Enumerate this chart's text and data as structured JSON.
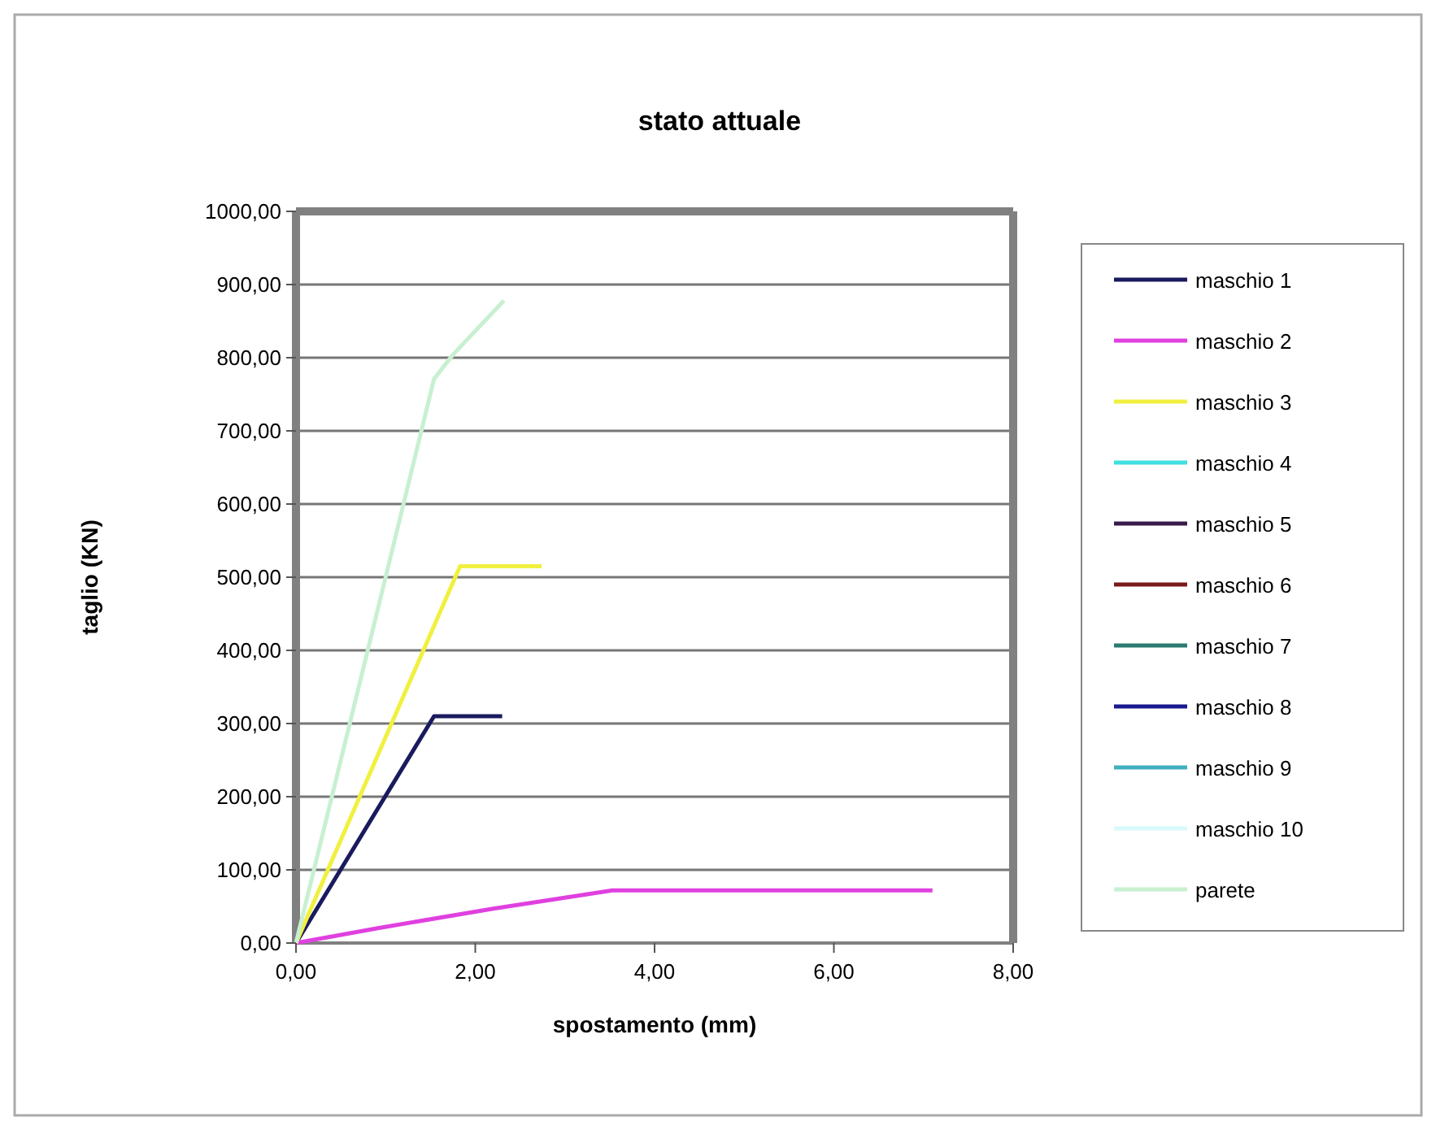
{
  "chart_data": {
    "type": "line",
    "title": "stato attuale",
    "xlabel": "spostamento (mm)",
    "ylabel": "taglio (KN)",
    "xlim": [
      0,
      8
    ],
    "xticks": [
      {
        "value": 0,
        "label": "0,00"
      },
      {
        "value": 2,
        "label": "2,00"
      },
      {
        "value": 4,
        "label": "4,00"
      },
      {
        "value": 6,
        "label": "6,00"
      },
      {
        "value": 8,
        "label": "8,00"
      }
    ],
    "ylim": [
      0,
      1000
    ],
    "yticks": [
      {
        "value": 0,
        "label": "0,00"
      },
      {
        "value": 100,
        "label": "100,00"
      },
      {
        "value": 200,
        "label": "200,00"
      },
      {
        "value": 300,
        "label": "300,00"
      },
      {
        "value": 400,
        "label": "400,00"
      },
      {
        "value": 500,
        "label": "500,00"
      },
      {
        "value": 600,
        "label": "600,00"
      },
      {
        "value": 700,
        "label": "700,00"
      },
      {
        "value": 800,
        "label": "800,00"
      },
      {
        "value": 900,
        "label": "900,00"
      },
      {
        "value": 1000,
        "label": "1000,00"
      }
    ],
    "grid": "y",
    "legend": "right",
    "marker": "none",
    "line_style": "solid",
    "series": [
      {
        "name": "maschio 1",
        "color": "#1a1a5e",
        "x": [
          0,
          1.54,
          2.3
        ],
        "values": [
          0,
          310,
          310
        ]
      },
      {
        "name": "maschio 2",
        "color": "#e040e0",
        "x": [
          0,
          0.9,
          2.2,
          3.53,
          7.1
        ],
        "values": [
          0,
          20,
          47,
          72,
          72
        ]
      },
      {
        "name": "maschio 3",
        "color": "#f0f040",
        "x": [
          0,
          1.83,
          2.74
        ],
        "values": [
          0,
          515,
          515
        ]
      },
      {
        "name": "maschio 4",
        "color": "#40e0e0"
      },
      {
        "name": "maschio 5",
        "color": "#3a1a4a"
      },
      {
        "name": "maschio 6",
        "color": "#7a1a1a"
      },
      {
        "name": "maschio 7",
        "color": "#2a7a70"
      },
      {
        "name": "maschio 8",
        "color": "#1a1a90"
      },
      {
        "name": "maschio 9",
        "color": "#40b0c0"
      },
      {
        "name": "maschio 10",
        "color": "#d8fafa"
      },
      {
        "name": "parete",
        "color": "#c8f0d0",
        "x": [
          0,
          1.0,
          1.54,
          1.75,
          2.32
        ],
        "values": [
          0,
          500,
          771,
          804,
          878
        ]
      }
    ]
  }
}
